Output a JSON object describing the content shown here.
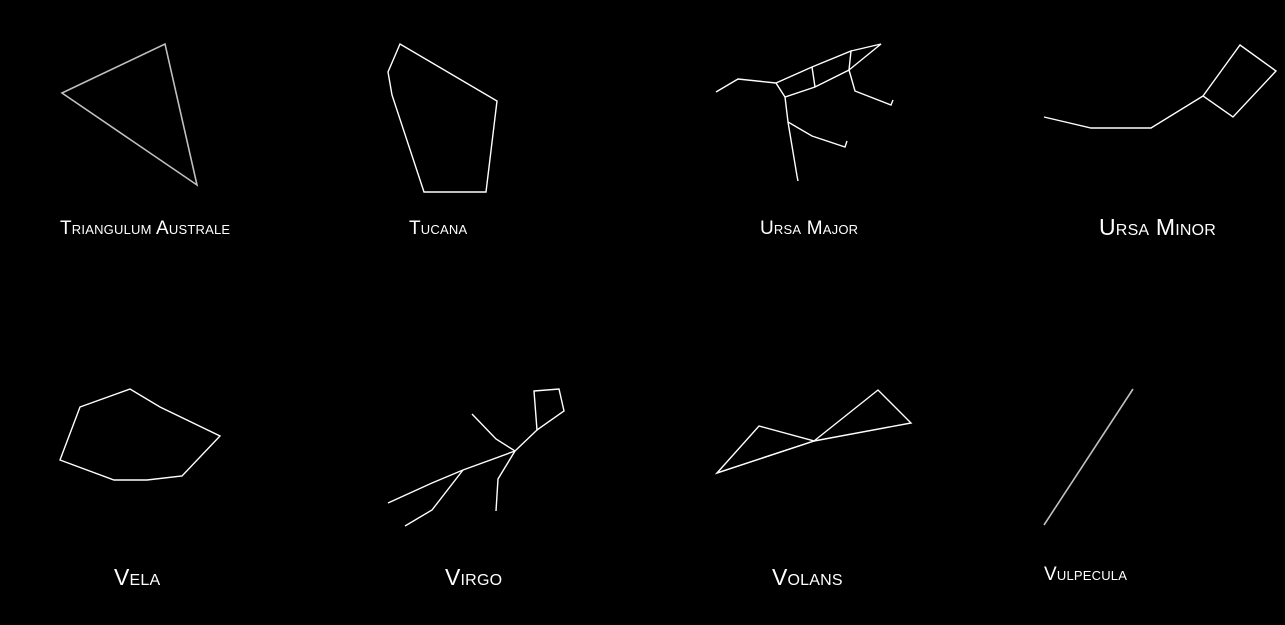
{
  "colors": {
    "background": "#000000",
    "line": "#ffffff",
    "text": "#ffffff"
  },
  "constellations": [
    {
      "name": "Triangulum Australe"
    },
    {
      "name": "Tucana"
    },
    {
      "name": "Ursa Major"
    },
    {
      "name": "Ursa Minor"
    },
    {
      "name": "Vela"
    },
    {
      "name": "Virgo"
    },
    {
      "name": "Volans"
    },
    {
      "name": "Vulpecula"
    }
  ]
}
